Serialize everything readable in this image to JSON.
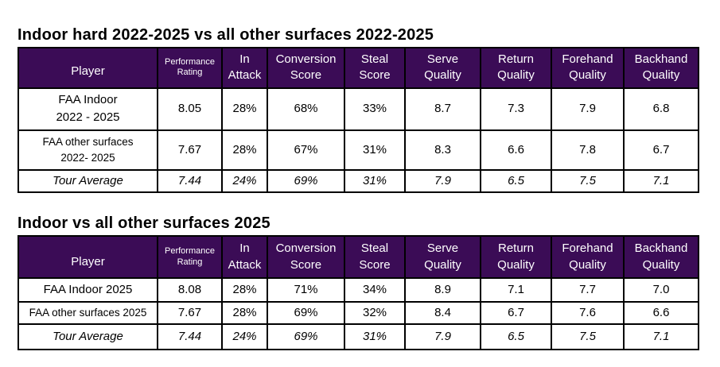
{
  "colors": {
    "header_background": "#3b0c56",
    "header_text": "#ffffff",
    "table_border": "#000000",
    "body_text": "#000000"
  },
  "tables": [
    {
      "title": "Indoor hard 2022-2025 vs all other surfaces 2022-2025",
      "columns": [
        {
          "id": "player",
          "line1": "Player",
          "line2": "",
          "small": false
        },
        {
          "id": "performance-rating",
          "line1": "Performance",
          "line2": "Rating",
          "small": true
        },
        {
          "id": "in-attack",
          "line1": "In",
          "line2": "Attack",
          "small": false
        },
        {
          "id": "conversion-score",
          "line1": "Conversion",
          "line2": "Score",
          "small": false
        },
        {
          "id": "steal-score",
          "line1": "Steal",
          "line2": "Score",
          "small": false
        },
        {
          "id": "serve-quality",
          "line1": "Serve",
          "line2": "Quality",
          "small": false
        },
        {
          "id": "return-quality",
          "line1": "Return",
          "line2": "Quality",
          "small": false
        },
        {
          "id": "forehand-quality",
          "line1": "Forehand",
          "line2": "Quality",
          "small": false
        },
        {
          "id": "backhand-quality",
          "line1": "Backhand",
          "line2": "Quality",
          "small": false
        }
      ],
      "rows": [
        {
          "player_line1": "FAA Indoor",
          "player_line2": "2022 - 2025",
          "small_player": false,
          "italic": false,
          "values": [
            "8.05",
            "28%",
            "68%",
            "33%",
            "8.7",
            "7.3",
            "7.9",
            "6.8"
          ]
        },
        {
          "player_line1": "FAA other surfaces",
          "player_line2": "2022- 2025",
          "small_player": true,
          "italic": false,
          "values": [
            "7.67",
            "28%",
            "67%",
            "31%",
            "8.3",
            "6.6",
            "7.8",
            "6.7"
          ]
        },
        {
          "player_line1": "Tour Average",
          "player_line2": "",
          "small_player": false,
          "italic": true,
          "values": [
            "7.44",
            "24%",
            "69%",
            "31%",
            "7.9",
            "6.5",
            "7.5",
            "7.1"
          ]
        }
      ]
    },
    {
      "title": "Indoor vs all other surfaces 2025",
      "columns": [
        {
          "id": "player",
          "line1": "Player",
          "line2": "",
          "small": false
        },
        {
          "id": "performance-rating",
          "line1": "Performance",
          "line2": "Rating",
          "small": true
        },
        {
          "id": "in-attack",
          "line1": "In",
          "line2": "Attack",
          "small": false
        },
        {
          "id": "conversion-score",
          "line1": "Conversion",
          "line2": "Score",
          "small": false
        },
        {
          "id": "steal-score",
          "line1": "Steal",
          "line2": "Score",
          "small": false
        },
        {
          "id": "serve-quality",
          "line1": "Serve",
          "line2": "Quality",
          "small": false
        },
        {
          "id": "return-quality",
          "line1": "Return",
          "line2": "Quality",
          "small": false
        },
        {
          "id": "forehand-quality",
          "line1": "Forehand",
          "line2": "Quality",
          "small": false
        },
        {
          "id": "backhand-quality",
          "line1": "Backhand",
          "line2": "Quality",
          "small": false
        }
      ],
      "rows": [
        {
          "player_line1": "FAA Indoor 2025",
          "player_line2": "",
          "small_player": false,
          "italic": false,
          "values": [
            "8.08",
            "28%",
            "71%",
            "34%",
            "8.9",
            "7.1",
            "7.7",
            "7.0"
          ]
        },
        {
          "player_line1": "FAA other surfaces 2025",
          "player_line2": "",
          "small_player": true,
          "italic": false,
          "values": [
            "7.67",
            "28%",
            "69%",
            "32%",
            "8.4",
            "6.7",
            "7.6",
            "6.6"
          ]
        },
        {
          "player_line1": "Tour Average",
          "player_line2": "",
          "small_player": false,
          "italic": true,
          "values": [
            "7.44",
            "24%",
            "69%",
            "31%",
            "7.9",
            "6.5",
            "7.5",
            "7.1"
          ]
        }
      ]
    }
  ]
}
